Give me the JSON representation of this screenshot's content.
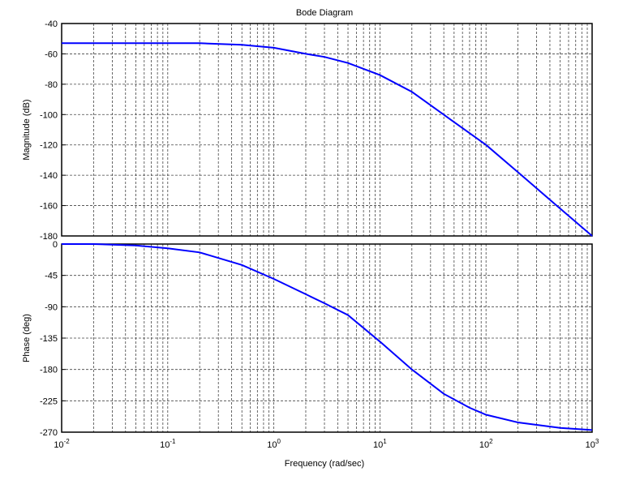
{
  "chart_data": [
    {
      "type": "line",
      "title": "Bode Diagram",
      "ylabel": "Magnitude (dB)",
      "xlabel": "",
      "xscale": "log",
      "xlim": [
        0.01,
        1000
      ],
      "ylim": [
        -180,
        -40
      ],
      "yticks": [
        "-40",
        "-60",
        "-80",
        "-100",
        "-120",
        "-140",
        "-160",
        "-180"
      ],
      "grid": true,
      "line_color": "#0000ff",
      "series": [
        {
          "x": [
            0.01,
            0.05,
            0.2,
            0.5,
            1,
            2,
            3,
            5,
            10,
            20,
            50,
            100,
            200,
            500,
            1000
          ],
          "y": [
            -53,
            -53,
            -53,
            -54,
            -56,
            -60,
            -62,
            -66,
            -74,
            -85,
            -105,
            -120,
            -138,
            -162,
            -180
          ]
        }
      ]
    },
    {
      "type": "line",
      "ylabel": "Phase (deg)",
      "xlabel": "Frequency  (rad/sec)",
      "xscale": "log",
      "xlim": [
        0.01,
        1000
      ],
      "ylim": [
        -270,
        0
      ],
      "yticks": [
        "0",
        "-45",
        "-90",
        "-135",
        "-180",
        "-225",
        "-270"
      ],
      "xtick_bases": [
        "10",
        "10",
        "10",
        "10",
        "10",
        "10"
      ],
      "xtick_exps": [
        "-2",
        "-1",
        "0",
        "1",
        "2",
        "3"
      ],
      "grid": true,
      "line_color": "#0000ff",
      "series": [
        {
          "x": [
            0.01,
            0.02,
            0.05,
            0.1,
            0.2,
            0.5,
            1,
            2,
            3,
            5,
            10,
            20,
            40,
            70,
            100,
            200,
            500,
            1000
          ],
          "y": [
            0,
            0,
            -2,
            -6,
            -12,
            -30,
            -50,
            -72,
            -85,
            -102,
            -140,
            -180,
            -215,
            -235,
            -245,
            -256,
            -264,
            -267
          ]
        }
      ]
    }
  ]
}
